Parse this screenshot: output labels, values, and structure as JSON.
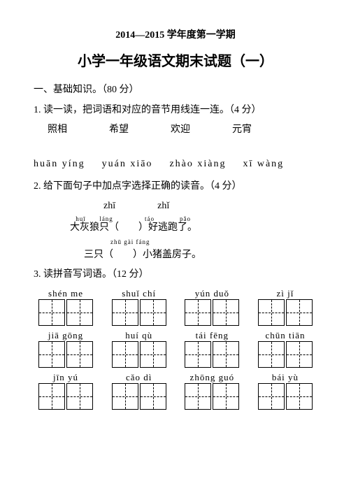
{
  "header": "2014—2015 学年度第一学期",
  "title": "小学一年级语文期末试题（一）",
  "section1": "一、基础知识。（80 分）",
  "q1": {
    "text": "1. 读一读，把词语和对应的音节用线连一连。（4 分）",
    "words": [
      "照相",
      "希望",
      "欢迎",
      "元宵"
    ],
    "pinyin": [
      "huān  yíng",
      "yuán  xiāo",
      "zhào  xiàng",
      "xī  wàng"
    ]
  },
  "q2": {
    "text": "2. 给下面句子中加点字选择正确的读音。（4 分）",
    "opts": [
      "zhī",
      "zhǐ"
    ],
    "line1_ruby": "huī láng",
    "line1_base": "大灰狼只（",
    "line1_tail_ruby": "táo pǎo",
    "line1_tail_base": "）好逃跑了。",
    "line2_ruby": "zhū gài fáng",
    "line2_pre": "三只（",
    "line2_post": "）小猪盖房子。"
  },
  "q3": {
    "text": "3. 读拼音写词语。（12 分）",
    "rows": [
      [
        "shén me",
        "shuǐ chí",
        "yún duǒ",
        "zì jǐ"
      ],
      [
        "jiā gōng",
        "huí qù",
        "tái fēng",
        "chūn tiān"
      ],
      [
        "jīn yú",
        "cǎo dì",
        "zhōng guó",
        "bái yù"
      ]
    ]
  }
}
